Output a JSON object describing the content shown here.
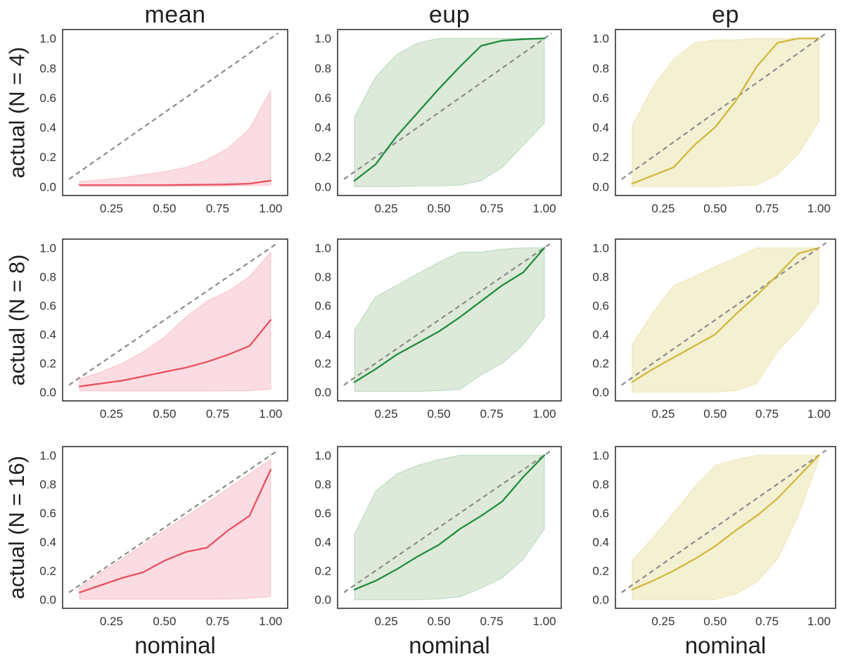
{
  "chart_data": {
    "type": "line",
    "grid": "3x3",
    "title": "",
    "xlabel": "nominal",
    "ylabel": "actual",
    "col_titles": [
      "mean",
      "eup",
      "ep"
    ],
    "row_labels": [
      "actual (N = 4)",
      "actual (N = 8)",
      "actual (N = 16)"
    ],
    "x": [
      0.1,
      0.2,
      0.3,
      0.4,
      0.5,
      0.6,
      0.7,
      0.8,
      0.9,
      1.0
    ],
    "x_tick_labels": [
      "0.25",
      "0.50",
      "0.75",
      "1.00"
    ],
    "x_tick_values": [
      0.25,
      0.5,
      0.75,
      1.0
    ],
    "y_tick_labels": [
      "0.0",
      "0.2",
      "0.4",
      "0.6",
      "0.8",
      "1.0"
    ],
    "y_tick_values": [
      0.0,
      0.2,
      0.4,
      0.6,
      0.8,
      1.0
    ],
    "xlim": [
      0.02,
      1.08
    ],
    "ylim": [
      -0.06,
      1.06
    ],
    "grid_lines": "off",
    "legend": "none",
    "diagonal_reference": {
      "style": "dashed",
      "from": 0.05,
      "to": 1.035
    },
    "colors": {
      "mean": {
        "line": "#e8505f",
        "band": "#fbdce2"
      },
      "eup": {
        "line": "#218c3c",
        "band": "#ddeada"
      },
      "ep": {
        "line": "#d3b73c",
        "band": "#f4f0d2"
      },
      "diagonal": "#8c8c8c",
      "axis_border": "#333333",
      "text": "#1f1f1f",
      "tick_text": "#333333",
      "background": "#ffffff"
    },
    "subplots": [
      {
        "id": "mean-n4",
        "row": "actual (N = 4)",
        "col": "mean",
        "median": [
          0.01,
          0.01,
          0.01,
          0.01,
          0.01,
          0.012,
          0.013,
          0.015,
          0.02,
          0.04
        ],
        "band_low": [
          0.003,
          0.003,
          0.003,
          0.003,
          0.003,
          0.003,
          0.003,
          0.004,
          0.006,
          0.01
        ],
        "band_high": [
          0.035,
          0.045,
          0.06,
          0.08,
          0.1,
          0.13,
          0.18,
          0.26,
          0.39,
          0.65
        ]
      },
      {
        "id": "eup-n4",
        "row": "actual (N = 4)",
        "col": "eup",
        "median": [
          0.04,
          0.15,
          0.34,
          0.5,
          0.66,
          0.81,
          0.95,
          0.985,
          0.995,
          1.0
        ],
        "band_low": [
          0.0,
          0.0,
          0.0,
          0.005,
          0.005,
          0.01,
          0.04,
          0.13,
          0.28,
          0.43
        ],
        "band_high": [
          0.47,
          0.74,
          0.89,
          0.97,
          1.0,
          1.0,
          1.0,
          1.0,
          1.0,
          1.0
        ]
      },
      {
        "id": "ep-n4",
        "row": "actual (N = 4)",
        "col": "ep",
        "median": [
          0.02,
          0.075,
          0.13,
          0.28,
          0.4,
          0.58,
          0.81,
          0.97,
          1.0,
          1.0
        ],
        "band_low": [
          0.0,
          0.0,
          0.0,
          0.0,
          0.0,
          0.005,
          0.01,
          0.08,
          0.22,
          0.44
        ],
        "band_high": [
          0.41,
          0.67,
          0.86,
          0.97,
          0.99,
          0.99,
          1.0,
          1.0,
          1.0,
          1.0
        ]
      },
      {
        "id": "mean-n8",
        "row": "actual (N = 8)",
        "col": "mean",
        "median": [
          0.04,
          0.06,
          0.08,
          0.11,
          0.14,
          0.17,
          0.21,
          0.26,
          0.32,
          0.5
        ],
        "band_low": [
          0.01,
          0.008,
          0.008,
          0.008,
          0.008,
          0.008,
          0.008,
          0.01,
          0.01,
          0.02
        ],
        "band_high": [
          0.09,
          0.14,
          0.2,
          0.28,
          0.38,
          0.52,
          0.63,
          0.7,
          0.8,
          0.97
        ]
      },
      {
        "id": "eup-n8",
        "row": "actual (N = 8)",
        "col": "eup",
        "median": [
          0.07,
          0.16,
          0.26,
          0.34,
          0.42,
          0.52,
          0.63,
          0.74,
          0.83,
          1.0
        ],
        "band_low": [
          0.005,
          0.005,
          0.005,
          0.005,
          0.01,
          0.02,
          0.12,
          0.2,
          0.33,
          0.52
        ],
        "band_high": [
          0.43,
          0.66,
          0.74,
          0.82,
          0.9,
          0.97,
          0.97,
          0.99,
          1.0,
          1.0
        ]
      },
      {
        "id": "ep-n8",
        "row": "actual (N = 8)",
        "col": "ep",
        "median": [
          0.07,
          0.16,
          0.24,
          0.32,
          0.4,
          0.54,
          0.67,
          0.81,
          0.96,
          1.0
        ],
        "band_low": [
          0.0,
          0.0,
          0.0,
          0.0,
          0.0,
          0.01,
          0.06,
          0.28,
          0.43,
          0.62
        ],
        "band_high": [
          0.33,
          0.55,
          0.74,
          0.8,
          0.87,
          0.93,
          1.0,
          1.0,
          1.0,
          1.0
        ]
      },
      {
        "id": "mean-n16",
        "row": "actual (N = 16)",
        "col": "mean",
        "median": [
          0.05,
          0.1,
          0.15,
          0.19,
          0.27,
          0.33,
          0.36,
          0.48,
          0.58,
          0.9
        ],
        "band_low": [
          0.003,
          0.003,
          0.003,
          0.003,
          0.003,
          0.003,
          0.003,
          0.004,
          0.01,
          0.02
        ],
        "band_high": [
          0.085,
          0.185,
          0.28,
          0.38,
          0.48,
          0.575,
          0.67,
          0.77,
          0.87,
          0.97
        ]
      },
      {
        "id": "eup-n16",
        "row": "actual (N = 16)",
        "col": "eup",
        "median": [
          0.07,
          0.13,
          0.21,
          0.3,
          0.38,
          0.49,
          0.58,
          0.68,
          0.85,
          1.0
        ],
        "band_low": [
          0.0,
          0.0,
          0.0,
          0.0,
          0.005,
          0.02,
          0.08,
          0.15,
          0.28,
          0.49
        ],
        "band_high": [
          0.45,
          0.75,
          0.87,
          0.93,
          0.97,
          1.0,
          1.0,
          1.0,
          1.0,
          1.0
        ]
      },
      {
        "id": "ep-n16",
        "row": "actual (N = 16)",
        "col": "ep",
        "median": [
          0.07,
          0.13,
          0.2,
          0.28,
          0.37,
          0.48,
          0.58,
          0.7,
          0.85,
          1.0
        ],
        "band_low": [
          0.0,
          0.0,
          0.0,
          0.0,
          0.0,
          0.04,
          0.12,
          0.28,
          0.58,
          0.97
        ],
        "band_high": [
          0.27,
          0.43,
          0.6,
          0.78,
          0.93,
          0.97,
          1.0,
          1.0,
          1.0,
          1.0
        ]
      }
    ]
  }
}
